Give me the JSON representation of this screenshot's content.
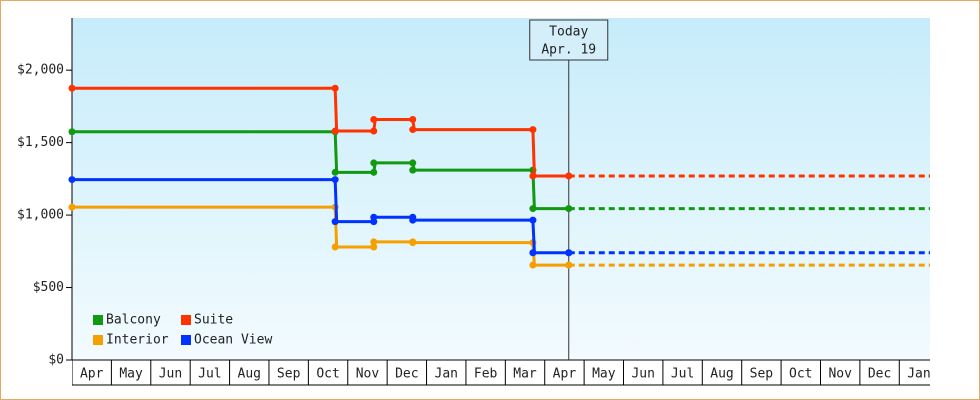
{
  "chart_data": {
    "type": "step",
    "categories": [
      "Apr",
      "May",
      "Jun",
      "Jul",
      "Aug",
      "Sep",
      "Oct",
      "Nov",
      "Dec",
      "Jan",
      "Feb",
      "Mar",
      "Apr",
      "May",
      "Jun",
      "Jul",
      "Aug",
      "Sep",
      "Oct",
      "Nov",
      "Dec",
      "Jan"
    ],
    "xlim": [
      0,
      21.78
    ],
    "ylim": [
      0,
      2360
    ],
    "yticks": [
      {
        "value": 0,
        "label": "$0"
      },
      {
        "value": 500,
        "label": "$500"
      },
      {
        "value": 1000,
        "label": "$1,000"
      },
      {
        "value": 1500,
        "label": "$1,500"
      },
      {
        "value": 2000,
        "label": "$2,000"
      }
    ],
    "annotation": {
      "x": 12.61,
      "title": "Today",
      "label": "Apr. 19"
    },
    "x": [
      0,
      6.68,
      7.66,
      8.65,
      11.7,
      12.61
    ],
    "series": [
      {
        "name": "Balcony",
        "color": "#119911",
        "values": [
          1575,
          1295,
          1360,
          1310,
          1045,
          1045
        ]
      },
      {
        "name": "Suite",
        "color": "#ff3300",
        "values": [
          1875,
          1580,
          1660,
          1590,
          1270,
          1270
        ]
      },
      {
        "name": "Interior",
        "color": "#f5a000",
        "values": [
          1055,
          780,
          815,
          810,
          655,
          655
        ]
      },
      {
        "name": "Ocean View",
        "color": "#0033ff",
        "values": [
          1245,
          955,
          985,
          965,
          740,
          740
        ]
      }
    ]
  }
}
